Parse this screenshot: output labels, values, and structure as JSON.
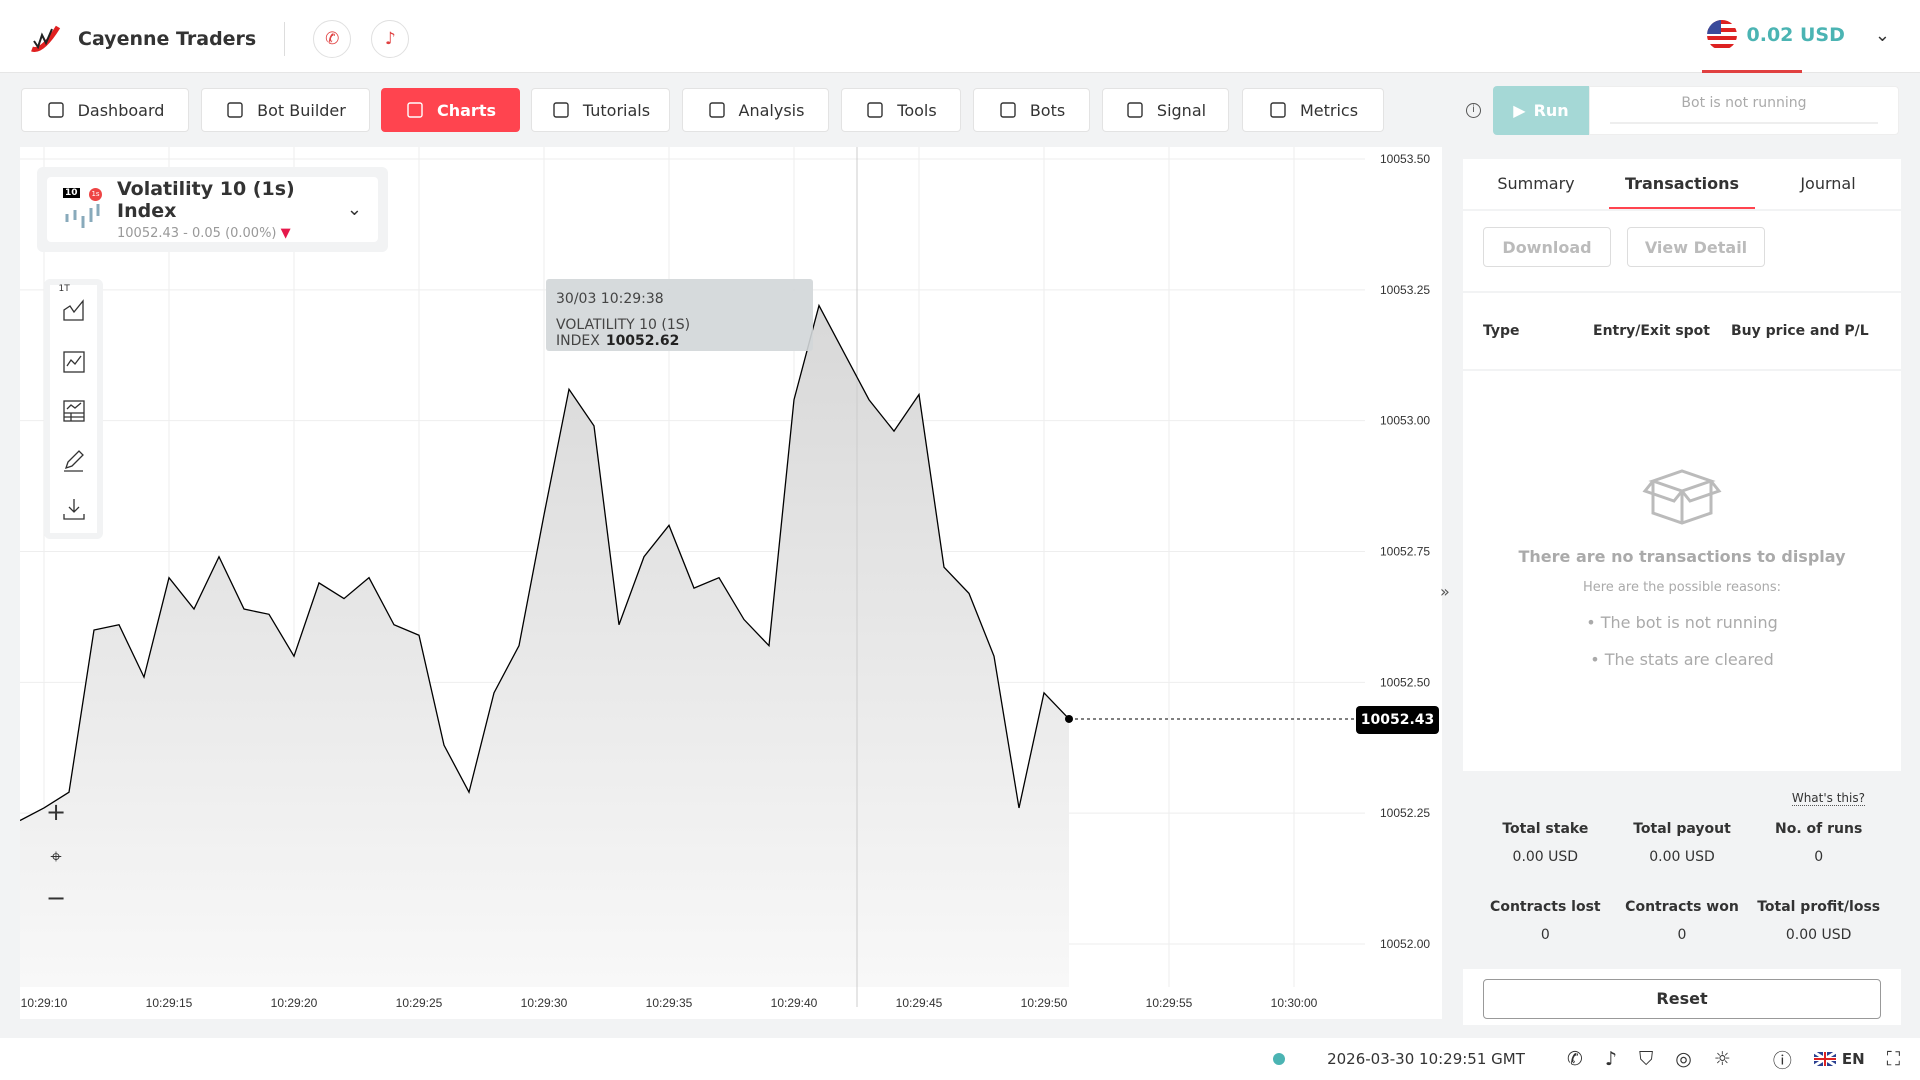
{
  "header": {
    "brand": "Cayenne Traders",
    "social": [
      {
        "icon": "whatsapp-icon"
      },
      {
        "icon": "tiktok-icon"
      }
    ],
    "balance": "0.02 USD",
    "currency_flag": "us-flag-icon"
  },
  "nav": [
    {
      "label": "Dashboard",
      "icon": "dashboard-icon"
    },
    {
      "label": "Bot Builder",
      "icon": "bot-builder-icon"
    },
    {
      "label": "Charts",
      "icon": "chart-icon",
      "active": true
    },
    {
      "label": "Tutorials",
      "icon": "tutorials-icon"
    },
    {
      "label": "Analysis",
      "icon": "bulb-icon"
    },
    {
      "label": "Tools",
      "icon": "gear-icon"
    },
    {
      "label": "Bots",
      "icon": "bots-icon"
    },
    {
      "label": "Signal",
      "icon": "signal-icon"
    },
    {
      "label": "Metrics",
      "icon": "metrics-icon"
    }
  ],
  "run": {
    "label": "Run",
    "status": "Bot is not running"
  },
  "symbol": {
    "name": "Volatility 10 (1s) Index",
    "badge_1": "10",
    "badge_2": "1s",
    "price_line": "10052.43 - 0.05 (0.00%)",
    "direction": "down",
    "down_color": "#e6194b"
  },
  "toolbar": {
    "chart_type_label": "1T"
  },
  "tooltip": {
    "time": "30/03 10:29:38",
    "series": "VOLATILITY 10 (1S) INDEX",
    "value": "10052.62"
  },
  "current_price": "10052.43",
  "chart_data": {
    "type": "area",
    "x_ticks": [
      "10:29:10",
      "10:29:15",
      "10:29:20",
      "10:29:25",
      "10:29:30",
      "10:29:35",
      "10:29:40",
      "10:29:45",
      "10:29:50",
      "10:29:55",
      "10:30:00"
    ],
    "y_ticks": [
      "10053.50",
      "10053.25",
      "10053.00",
      "10052.75",
      "10052.50",
      "10052.25",
      "10052.00"
    ],
    "ylim": [
      10052.0,
      10053.5
    ],
    "xlim": [
      "10:29:10",
      "10:30:00"
    ],
    "grid": true,
    "x": [
      "10:29:10",
      "10:29:11",
      "10:29:12",
      "10:29:13",
      "10:29:14",
      "10:29:15",
      "10:29:16",
      "10:29:17",
      "10:29:18",
      "10:29:19",
      "10:29:20",
      "10:29:21",
      "10:29:22",
      "10:29:23",
      "10:29:24",
      "10:29:25",
      "10:29:26",
      "10:29:27",
      "10:29:28",
      "10:29:29",
      "10:29:30",
      "10:29:31",
      "10:29:32",
      "10:29:33",
      "10:29:34",
      "10:29:35",
      "10:29:36",
      "10:29:37",
      "10:29:38",
      "10:29:39",
      "10:29:40",
      "10:29:41",
      "10:29:42",
      "10:29:43",
      "10:29:44",
      "10:29:45",
      "10:29:46",
      "10:29:47",
      "10:29:48",
      "10:29:49",
      "10:29:50",
      "10:29:51"
    ],
    "values": [
      10052.26,
      10052.29,
      10052.6,
      10052.61,
      10052.51,
      10052.7,
      10052.64,
      10052.74,
      10052.64,
      10052.63,
      10052.55,
      10052.69,
      10052.66,
      10052.7,
      10052.61,
      10052.59,
      10052.38,
      10052.29,
      10052.48,
      10052.57,
      10052.82,
      10053.06,
      10052.99,
      10052.61,
      10052.74,
      10052.8,
      10052.68,
      10052.7,
      10052.62,
      10052.57,
      10053.04,
      10053.22,
      10053.13,
      10053.04,
      10052.98,
      10053.05,
      10052.72,
      10052.67,
      10052.55,
      10052.26,
      10052.48,
      10052.43
    ],
    "line_color": "#000000"
  },
  "panel": {
    "tabs": [
      "Summary",
      "Transactions",
      "Journal"
    ],
    "active_tab": "Transactions",
    "download": "Download",
    "view_detail": "View Detail",
    "columns": [
      "Type",
      "Entry/Exit spot",
      "Buy price and P/L"
    ],
    "empty_title": "There are no transactions to display",
    "empty_sub": "Here are the possible reasons:",
    "reasons": [
      "The bot is not running",
      "The stats are cleared"
    ],
    "whats_this": "What's this?",
    "stats": [
      {
        "label": "Total stake",
        "value": "0.00 USD"
      },
      {
        "label": "Total payout",
        "value": "0.00 USD"
      },
      {
        "label": "No. of runs",
        "value": "0"
      },
      {
        "label": "Contracts lost",
        "value": "0"
      },
      {
        "label": "Contracts won",
        "value": "0"
      },
      {
        "label": "Total profit/loss",
        "value": "0.00 USD"
      }
    ],
    "reset": "Reset"
  },
  "footer": {
    "datetime": "2026-03-30 10:29:51 GMT",
    "language": "EN",
    "connection_color": "#4bb4b3"
  }
}
